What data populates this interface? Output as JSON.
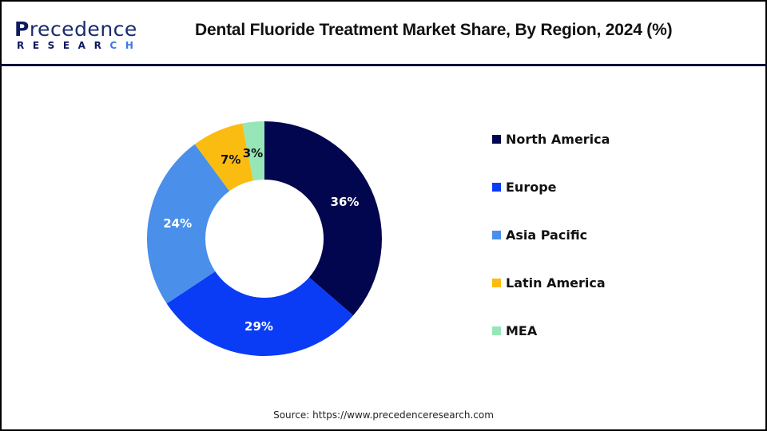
{
  "header": {
    "logo": {
      "line1_initial": "P",
      "line1_rest": "recedence",
      "line2_main": "RESEAR",
      "line2_accent": "CH"
    },
    "title": "Dental Fluoride Treatment Market Share, By Region, 2024 (%)"
  },
  "chart_data": {
    "type": "pie",
    "subtype": "donut",
    "title": "Dental Fluoride Treatment Market Share, By Region, 2024 (%)",
    "categories": [
      "North America",
      "Europe",
      "Asia Pacific",
      "Latin America",
      "MEA"
    ],
    "values": [
      36,
      29,
      24,
      7,
      3
    ],
    "unit": "%",
    "colors": [
      "#02064f",
      "#0a3cf5",
      "#4a8fea",
      "#fbbc12",
      "#96e6b8"
    ],
    "labels": [
      "36%",
      "29%",
      "24%",
      "7%",
      "3%"
    ],
    "label_colors": [
      "#ffffff",
      "#ffffff",
      "#ffffff",
      "#111111",
      "#111111"
    ],
    "start_angle_deg": 0,
    "direction": "clockwise",
    "legend_position": "right"
  },
  "legend": {
    "items": [
      {
        "label": "North America",
        "color": "#02064f"
      },
      {
        "label": "Europe",
        "color": "#0a3cf5"
      },
      {
        "label": "Asia Pacific",
        "color": "#4a8fea"
      },
      {
        "label": "Latin America",
        "color": "#fbbc12"
      },
      {
        "label": "MEA",
        "color": "#96e6b8"
      }
    ]
  },
  "footer": {
    "source": "Source: https://www.precedenceresearch.com"
  }
}
